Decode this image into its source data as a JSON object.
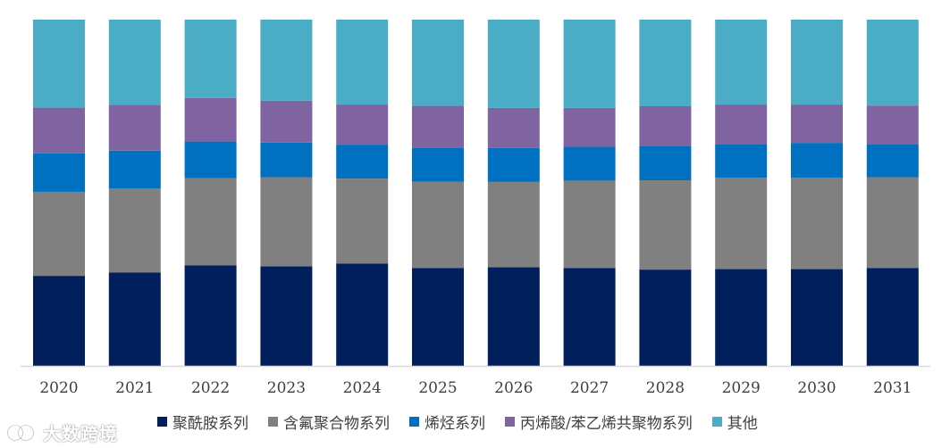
{
  "chart_data": {
    "type": "bar",
    "stacked": true,
    "normalized_100_percent": true,
    "categories": [
      "2020",
      "2021",
      "2022",
      "2023",
      "2024",
      "2025",
      "2026",
      "2027",
      "2028",
      "2029",
      "2030",
      "2031"
    ],
    "series": [
      {
        "name": "聚酰胺系列",
        "color": "#001f5c",
        "values": [
          26.0,
          27.0,
          29.0,
          28.8,
          29.5,
          28.3,
          28.5,
          28.3,
          27.8,
          28.0,
          28.0,
          28.3
        ]
      },
      {
        "name": "含氟聚合物系列",
        "color": "#808080",
        "values": [
          24.3,
          24.3,
          25.2,
          25.7,
          24.6,
          24.9,
          24.6,
          25.2,
          25.8,
          26.3,
          26.3,
          26.2
        ]
      },
      {
        "name": "烯烃系列",
        "color": "#0070c0",
        "values": [
          11.1,
          10.9,
          10.6,
          10.0,
          9.8,
          9.8,
          9.8,
          9.8,
          9.8,
          9.8,
          10.1,
          9.6
        ]
      },
      {
        "name": "丙烯酸/苯乙烯共聚物系列",
        "color": "#8064a2",
        "values": [
          13.2,
          13.2,
          12.6,
          12.1,
          11.6,
          12.1,
          11.6,
          11.2,
          11.6,
          11.4,
          11.1,
          11.1
        ]
      },
      {
        "name": "其他",
        "color": "#4bacc6",
        "values": [
          25.4,
          24.6,
          22.6,
          23.4,
          24.5,
          24.9,
          25.5,
          25.5,
          25.0,
          24.5,
          24.5,
          24.8
        ]
      }
    ],
    "ylim": [
      0,
      100
    ],
    "grid": false,
    "legend": "bottom"
  },
  "watermark": {
    "text": "大数跨境"
  }
}
